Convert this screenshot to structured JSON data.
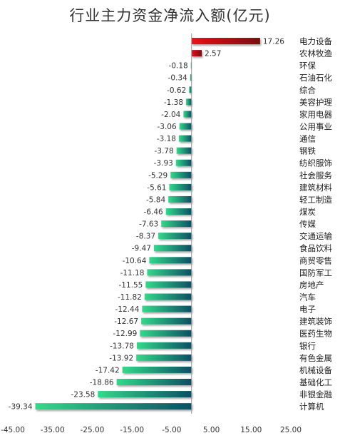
{
  "chart_data": {
    "type": "bar",
    "orientation": "horizontal",
    "title": "行业主力资金净流入额(亿元)",
    "xlabel": "",
    "ylabel": "",
    "xlim": [
      -45,
      25
    ],
    "x_ticks": [
      "-45.00",
      "-35.00",
      "-25.00",
      "-15.00",
      "-5.00",
      "5.00",
      "15.00",
      "25.00"
    ],
    "grid": false,
    "legend": "none",
    "colors": {
      "positive_start": "#e8121b",
      "positive_end": "#7a0d10",
      "negative_start": "#33d98a",
      "negative_end": "#0c4f63",
      "axis": "#999999"
    },
    "categories": [
      "电力设备",
      "农林牧渔",
      "环保",
      "石油石化",
      "综合",
      "美容护理",
      "家用电器",
      "公用事业",
      "通信",
      "钢铁",
      "纺织服饰",
      "社会服务",
      "建筑材料",
      "轻工制造",
      "煤炭",
      "传媒",
      "交通运输",
      "食品饮料",
      "商贸零售",
      "国防军工",
      "房地产",
      "汽车",
      "电子",
      "建筑装饰",
      "医药生物",
      "银行",
      "有色金属",
      "机械设备",
      "基础化工",
      "非银金融",
      "计算机"
    ],
    "values": [
      17.26,
      2.57,
      -0.18,
      -0.34,
      -0.62,
      -1.38,
      -2.04,
      -3.06,
      -3.18,
      -3.78,
      -3.93,
      -5.29,
      -5.61,
      -5.84,
      -6.46,
      -7.63,
      -8.37,
      -9.47,
      -10.64,
      -11.18,
      -11.55,
      -11.82,
      -12.44,
      -12.67,
      -12.99,
      -13.78,
      -13.92,
      -17.42,
      -18.86,
      -23.58,
      -39.34
    ],
    "value_labels": [
      "17.26",
      "2.57",
      "-0.18",
      "-0.34",
      "-0.62",
      "-1.38",
      "-2.04",
      "-3.06",
      "-3.18",
      "-3.78",
      "-3.93",
      "-5.29",
      "-5.61",
      "-5.84",
      "-6.46",
      "-7.63",
      "-8.37",
      "-9.47",
      "-10.64",
      "-11.18",
      "-11.55",
      "-11.82",
      "-12.44",
      "-12.67",
      "-12.99",
      "-13.78",
      "-13.92",
      "-17.42",
      "-18.86",
      "-23.58",
      "-39.34"
    ]
  }
}
